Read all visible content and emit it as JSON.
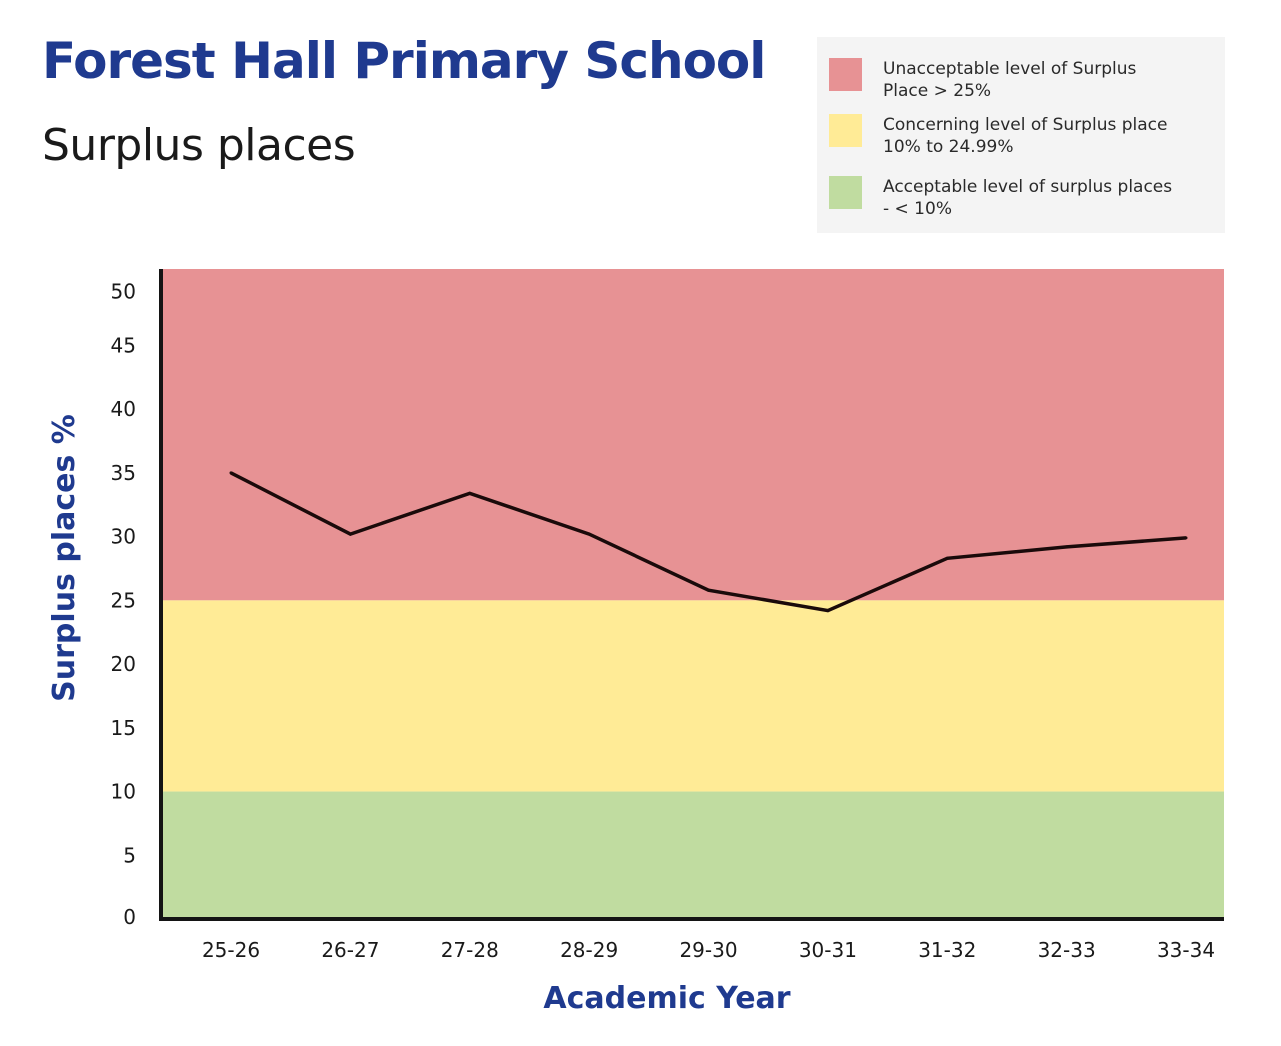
{
  "header": {
    "title": "Forest Hall Primary School",
    "subtitle": "Surplus places"
  },
  "legend": {
    "items": [
      {
        "line1": "Unacceptable level of Surplus",
        "line2": "Place > 25%",
        "color": "#e79294"
      },
      {
        "line1": "Concerning level of Surplus place",
        "line2": "10% to 24.99%",
        "color": "#ffeb96"
      },
      {
        "line1": "Acceptable level of surplus places",
        "line2": "- < 10%",
        "color": "#c0dca0"
      }
    ]
  },
  "chart_data": {
    "type": "line",
    "title": "Forest Hall Primary School",
    "subtitle": "Surplus places",
    "xlabel": "Academic Year",
    "ylabel": "Surplus places %",
    "categories": [
      "25-26",
      "26-27",
      "27-28",
      "28-29",
      "29-30",
      "30-31",
      "31-32",
      "32-33",
      "33-34"
    ],
    "series": [
      {
        "name": "Surplus places %",
        "color": "#1a0a0a",
        "values": [
          35.0,
          30.2,
          33.4,
          30.2,
          25.8,
          24.2,
          28.3,
          29.2,
          29.9
        ]
      }
    ],
    "ylim": [
      0,
      51
    ],
    "yticks": [
      0,
      5,
      10,
      15,
      20,
      25,
      30,
      35,
      40,
      45,
      50
    ],
    "bands": [
      {
        "name": "Unacceptable",
        "from": 25,
        "to": 51,
        "color": "#e79294"
      },
      {
        "name": "Concerning",
        "from": 10,
        "to": 25,
        "color": "#ffeb96"
      },
      {
        "name": "Acceptable",
        "from": 0,
        "to": 10,
        "color": "#c0dca0"
      }
    ],
    "grid": false,
    "legend_position": "top-right"
  }
}
